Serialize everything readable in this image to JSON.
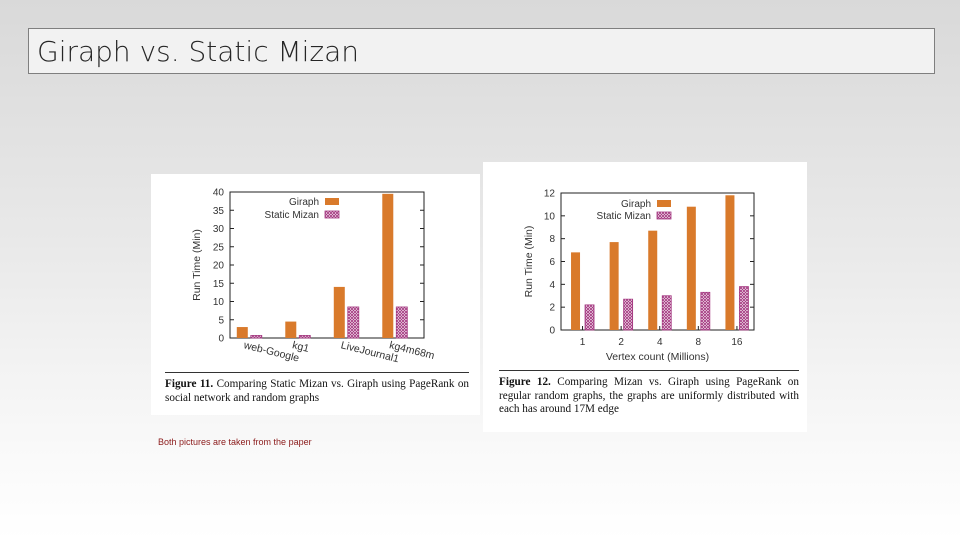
{
  "slide": {
    "title": "Giraph vs. Static Mizan",
    "footnote": "Both pictures are taken from the paper"
  },
  "colors": {
    "giraph": "#d97a2b",
    "mizan": "#a3367f"
  },
  "figures": [
    {
      "caption_label": "Figure 11.",
      "caption_text": "Comparing Static Mizan vs. Giraph using PageRank on social network and random graphs"
    },
    {
      "caption_label": "Figure 12.",
      "caption_text": "Comparing Mizan vs. Giraph using PageRank on regular random graphs, the graphs are uniformly distributed with each has around 17M edge"
    }
  ],
  "chart_data": [
    {
      "type": "bar",
      "title": "",
      "xlabel": "",
      "ylabel": "Run Time (Min)",
      "ylim": [
        0,
        40
      ],
      "yticks": [
        "0",
        "5",
        "10",
        "15",
        "20",
        "25",
        "30",
        "35",
        "40"
      ],
      "categories": [
        "web-Google",
        "kg1",
        "LiveJournal1",
        "kg4m68m"
      ],
      "series": [
        {
          "name": "Giraph",
          "values": [
            3,
            4.5,
            14,
            39.5
          ]
        },
        {
          "name": "Static Mizan",
          "values": [
            0.7,
            0.7,
            8.5,
            8.5
          ]
        }
      ],
      "legend": "top-left",
      "grid": false
    },
    {
      "type": "bar",
      "title": "",
      "xlabel": "Vertex count (Millions)",
      "ylabel": "Run Time (Min)",
      "ylim": [
        0,
        12
      ],
      "yticks": [
        "0",
        "2",
        "4",
        "6",
        "8",
        "10",
        "12"
      ],
      "categories": [
        "1",
        "2",
        "4",
        "8",
        "16"
      ],
      "series": [
        {
          "name": "Giraph",
          "values": [
            6.8,
            7.7,
            8.7,
            10.8,
            11.8
          ]
        },
        {
          "name": "Static Mizan",
          "values": [
            2.2,
            2.7,
            3.0,
            3.3,
            3.8
          ]
        }
      ],
      "legend": "top-left",
      "grid": false
    }
  ]
}
